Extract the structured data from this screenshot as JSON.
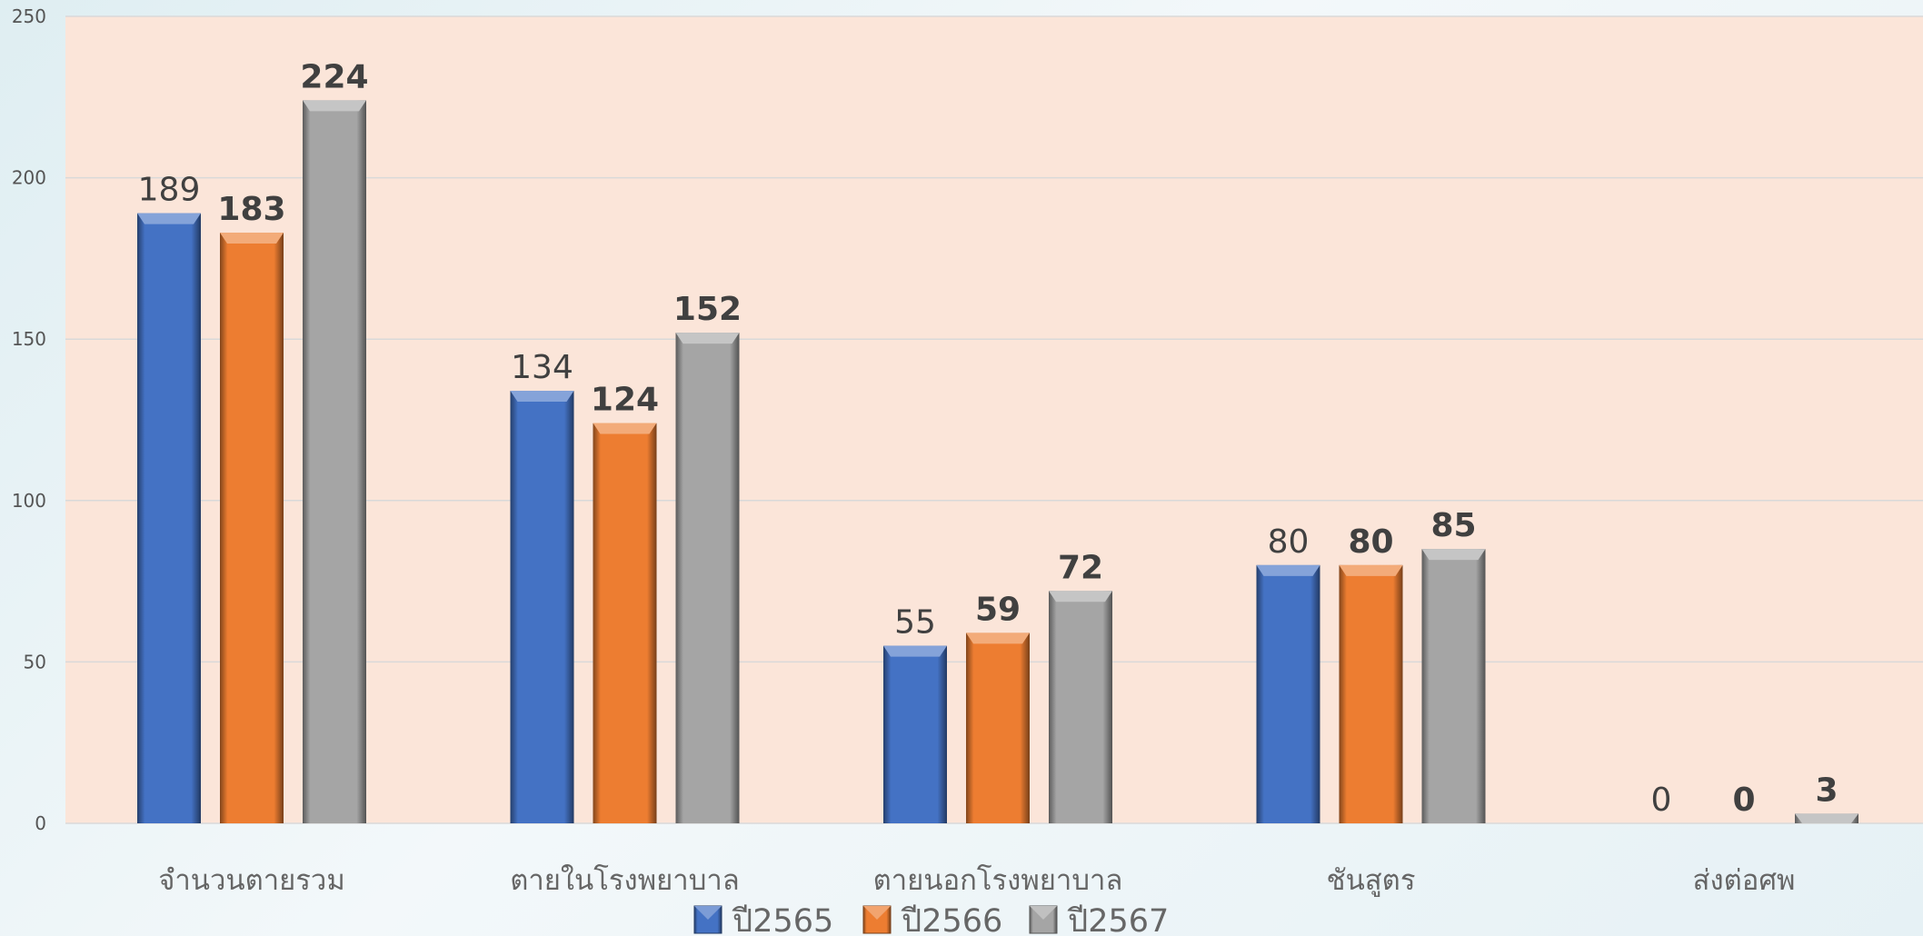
{
  "chart_data": {
    "type": "bar",
    "categories": [
      "จำนวนตายรวม",
      "ตายในโรงพยาบาล",
      "ตายนอกโรงพยาบาล",
      "ชันสูตร",
      "ส่งต่อศพ"
    ],
    "series": [
      {
        "name": "ปี2565",
        "values": [
          189,
          134,
          55,
          80,
          0
        ],
        "color": "#4472c4",
        "label_style": "normal"
      },
      {
        "name": "ปี2566",
        "values": [
          183,
          124,
          59,
          80,
          0
        ],
        "color": "#ed7d31",
        "label_style": "bold"
      },
      {
        "name": "ปี2567",
        "values": [
          224,
          152,
          72,
          85,
          3
        ],
        "color": "#a5a5a5",
        "label_style": "bold"
      }
    ],
    "ylim": [
      0,
      250
    ],
    "yticks": [
      0,
      50,
      100,
      150,
      200,
      250
    ],
    "grid": true,
    "legend_position": "bottom",
    "plot_background": "#fbe5d9"
  }
}
